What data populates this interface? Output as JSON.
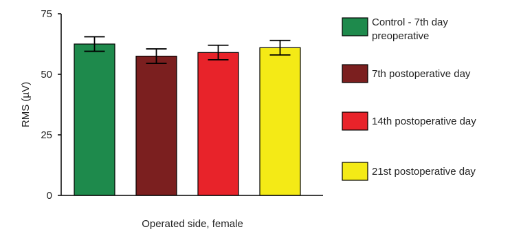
{
  "chart_data": {
    "type": "bar",
    "title": "",
    "xlabel": "Operated side, female",
    "ylabel": "RMS (µV)",
    "ylim": [
      0,
      75
    ],
    "yticks": [
      0,
      25,
      50,
      75
    ],
    "grid": false,
    "legend_position": "right",
    "series": [
      {
        "name": "Control - 7th day preoperative",
        "value": 62.5,
        "error": 3.0,
        "color": "#1e8a4c"
      },
      {
        "name": "7th postoperative day",
        "value": 57.5,
        "error": 3.0,
        "color": "#7b1f1f"
      },
      {
        "name": "14th postoperative day",
        "value": 59.0,
        "error": 3.0,
        "color": "#e8232a"
      },
      {
        "name": "21st postoperative day",
        "value": 61.0,
        "error": 3.0,
        "color": "#f4ea16"
      }
    ],
    "legend_lines": [
      [
        "Control - 7th day",
        "preoperative"
      ],
      [
        "7th postoperative day"
      ],
      [
        "14th postoperative day"
      ],
      [
        "21st postoperative day"
      ]
    ]
  }
}
